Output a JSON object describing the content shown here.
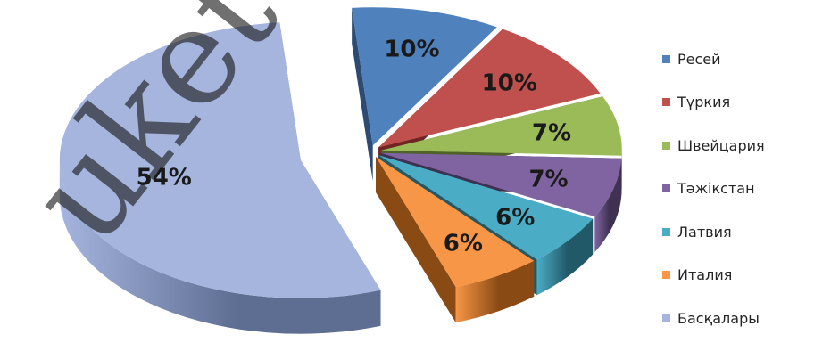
{
  "chart_data": {
    "type": "pie",
    "style": "3d-exploded",
    "legend_position": "right",
    "categories": [
      "Ресей",
      "Түркия",
      "Швейцария",
      "Тәжікстан",
      "Латвия",
      "Италия",
      "Басқалары"
    ],
    "values": [
      10,
      10,
      7,
      7,
      6,
      6,
      54
    ],
    "data_labels": [
      "10%",
      "10%",
      "7%",
      "7%",
      "6%",
      "6%",
      "54%"
    ],
    "colors": [
      "#4F81BD",
      "#C0504D",
      "#9BBB59",
      "#8064A2",
      "#4BACC6",
      "#F79646",
      "#A5B5DE"
    ],
    "side_colors": [
      "#2C4A72",
      "#6E2523",
      "#4F6228",
      "#3F3151",
      "#215968",
      "#8A4A14",
      "#5E6E93"
    ],
    "title": "",
    "unit": "%"
  },
  "watermark": {
    "text": "uketov",
    "color": "#191919"
  }
}
